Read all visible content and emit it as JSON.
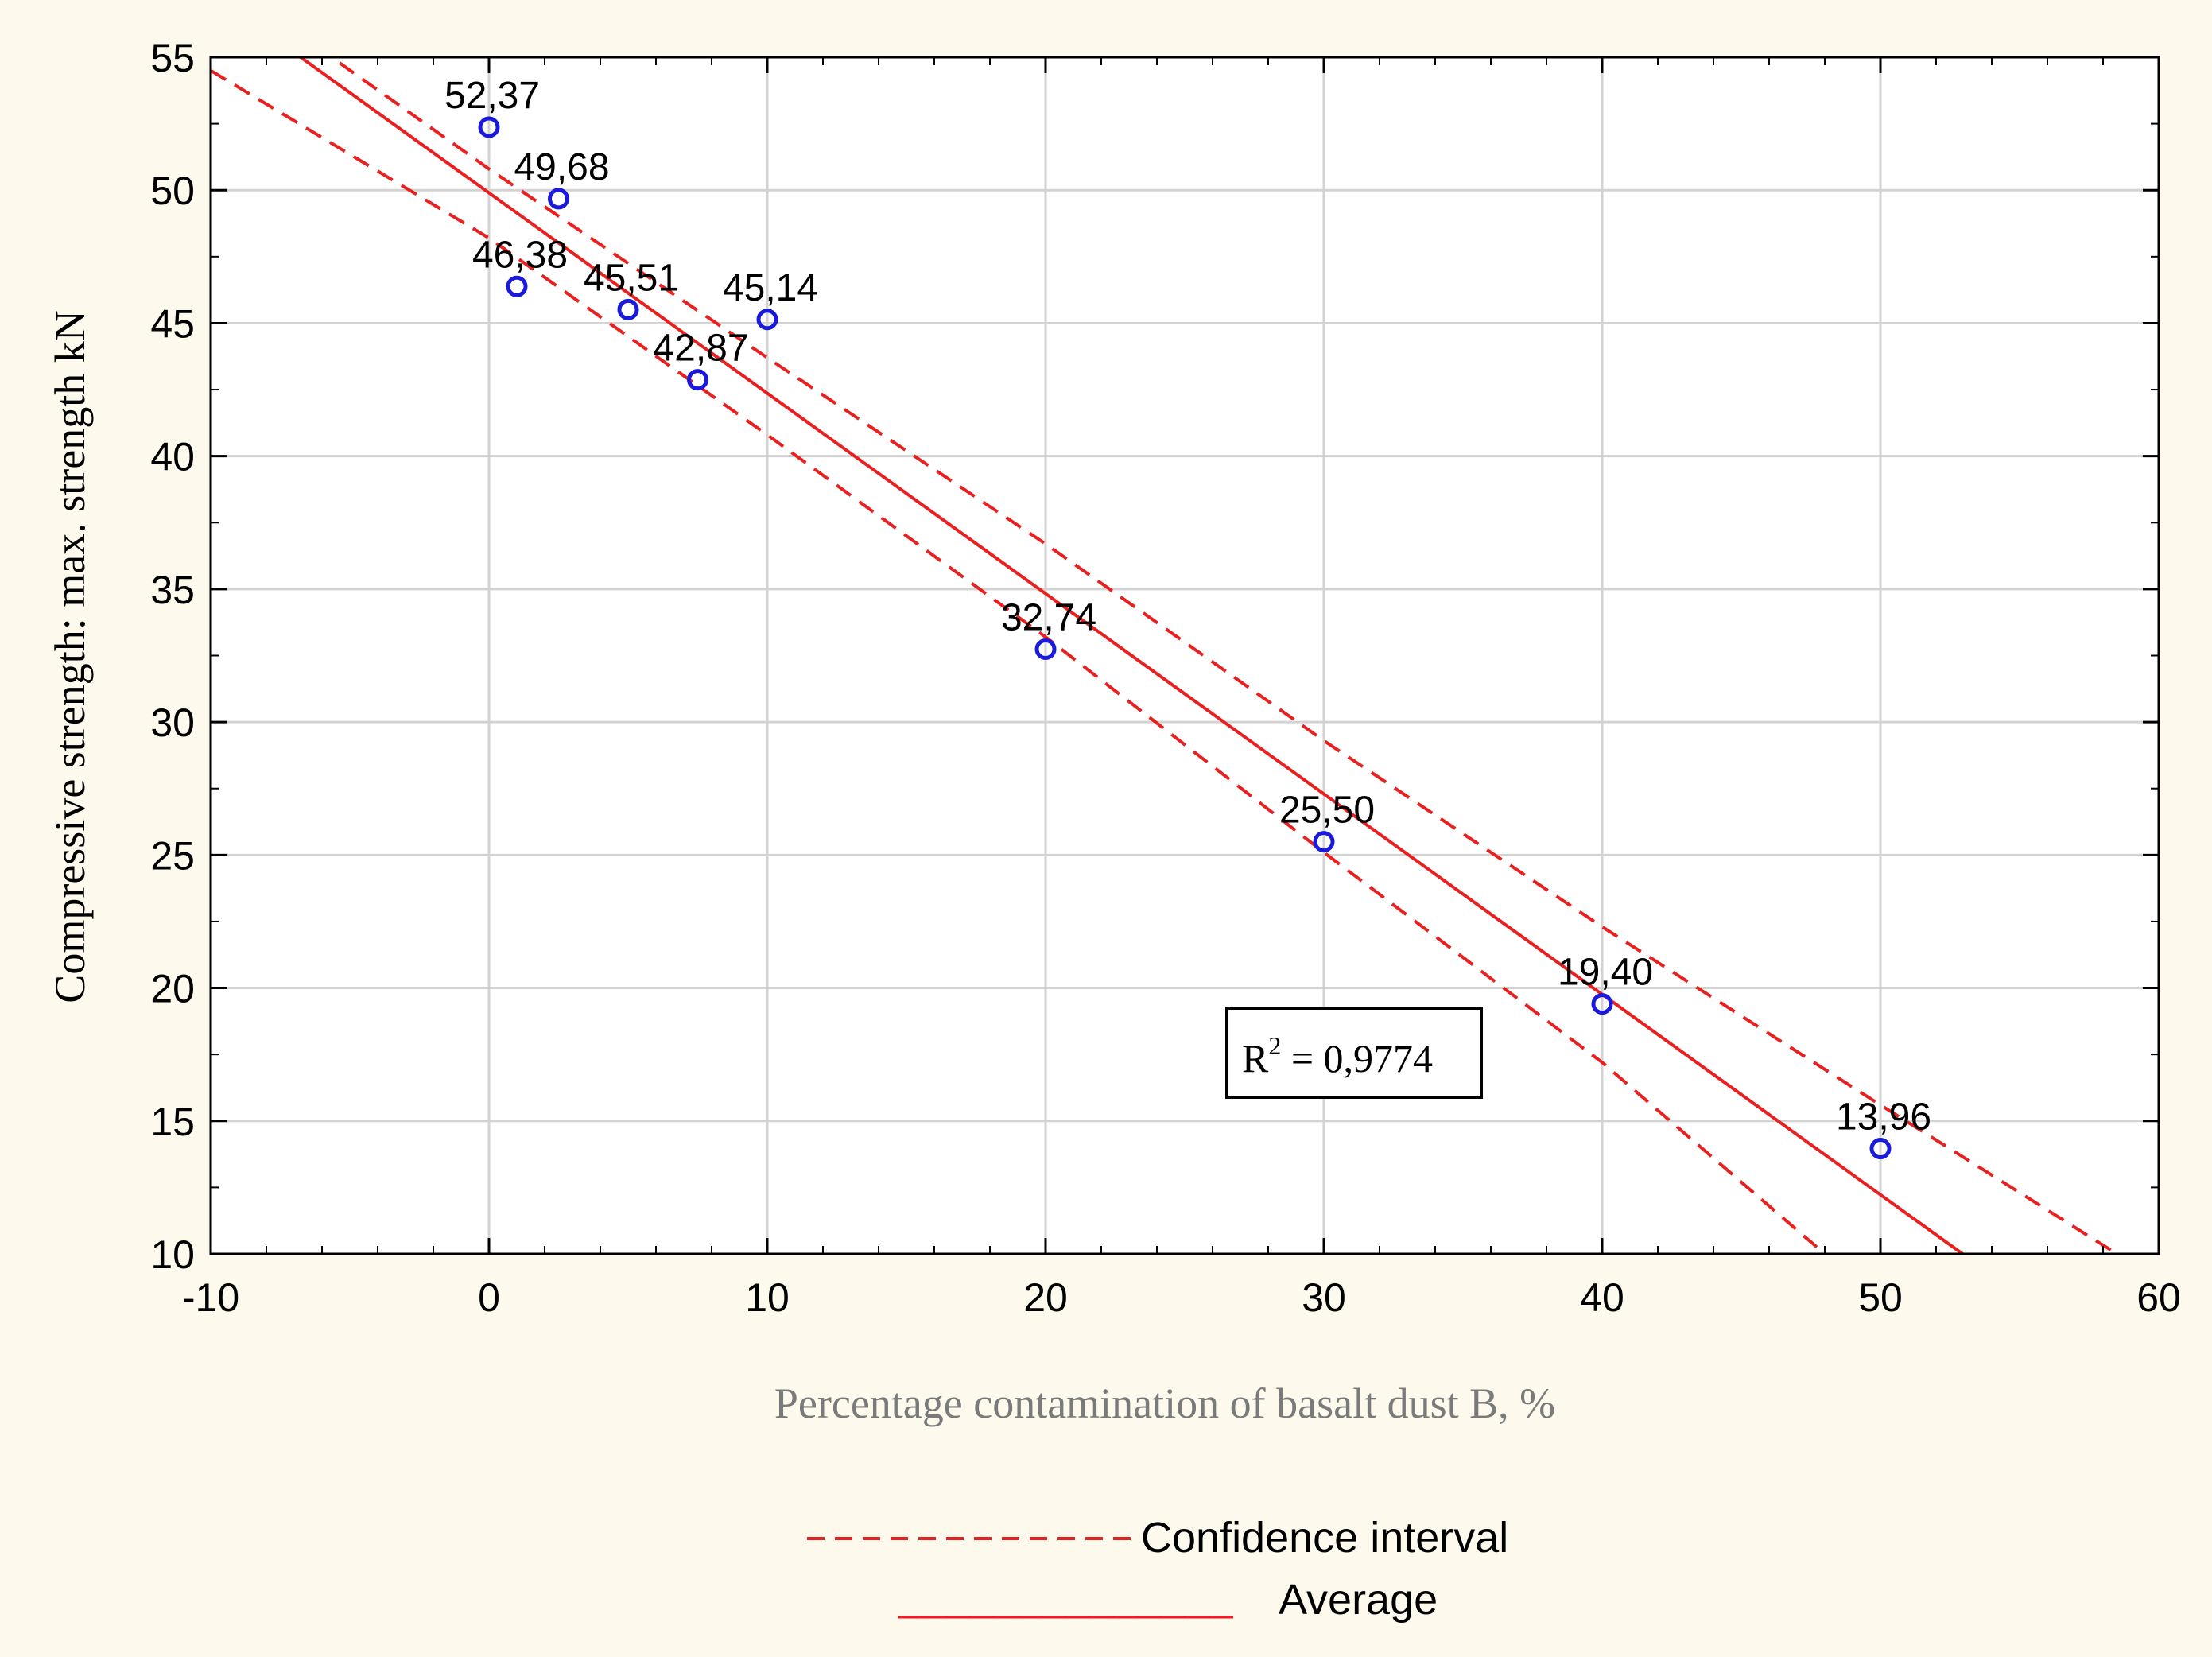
{
  "chart_data": {
    "type": "scatter",
    "title": "",
    "xlabel": "Percentage contamination of basalt dust B, %",
    "ylabel": "Compressive strength: max. strength kN",
    "xlim": [
      -10,
      60
    ],
    "ylim": [
      10,
      55
    ],
    "xticks": [
      -10,
      0,
      10,
      20,
      30,
      40,
      50,
      60
    ],
    "yticks": [
      10,
      15,
      20,
      25,
      30,
      35,
      40,
      45,
      50,
      55
    ],
    "grid": true,
    "points": [
      {
        "x": 0,
        "y": 52.37,
        "label": "52,37"
      },
      {
        "x": 2.5,
        "y": 49.68,
        "label": "49,68"
      },
      {
        "x": 1,
        "y": 46.38,
        "label": "46,38"
      },
      {
        "x": 5,
        "y": 45.51,
        "label": "45,51"
      },
      {
        "x": 10,
        "y": 45.14,
        "label": "45,14"
      },
      {
        "x": 7.5,
        "y": 42.87,
        "label": "42,87"
      },
      {
        "x": 20,
        "y": 32.74,
        "label": "32,74"
      },
      {
        "x": 30,
        "y": 25.5,
        "label": "25,50"
      },
      {
        "x": 40,
        "y": 19.4,
        "label": "19,40"
      },
      {
        "x": 50,
        "y": 13.96,
        "label": "13,96"
      }
    ],
    "regression": {
      "slope": -0.7535,
      "intercept": 49.9,
      "name": "Average"
    },
    "confidence_interval": {
      "name": "Confidence interval",
      "upper": [
        [
          -7,
          56
        ],
        [
          0,
          50.8
        ],
        [
          10,
          43.7
        ],
        [
          20,
          36.7
        ],
        [
          30,
          29.3
        ],
        [
          40,
          22.3
        ],
        [
          50,
          15.6
        ],
        [
          58.5,
          10
        ]
      ],
      "lower": [
        [
          -10,
          54.5
        ],
        [
          0,
          48.2
        ],
        [
          10,
          40.8
        ],
        [
          20,
          33.2
        ],
        [
          30,
          25.1
        ],
        [
          40,
          17.2
        ],
        [
          48,
          10
        ]
      ]
    },
    "annotation": {
      "prefix": "R",
      "superscript": "2",
      "text": " = 0,9774"
    },
    "legend": [
      {
        "label": "Confidence interval",
        "style": "dashed",
        "color": "#e82020"
      },
      {
        "label": "Average",
        "style": "solid",
        "color": "#e82020"
      }
    ],
    "legend_underline": "______________",
    "colors": {
      "line": "#e82020",
      "marker": "#1a1adc",
      "grid": "#d3d3d3",
      "axis": "#000000",
      "xlabel": "#7a7a7a"
    }
  }
}
